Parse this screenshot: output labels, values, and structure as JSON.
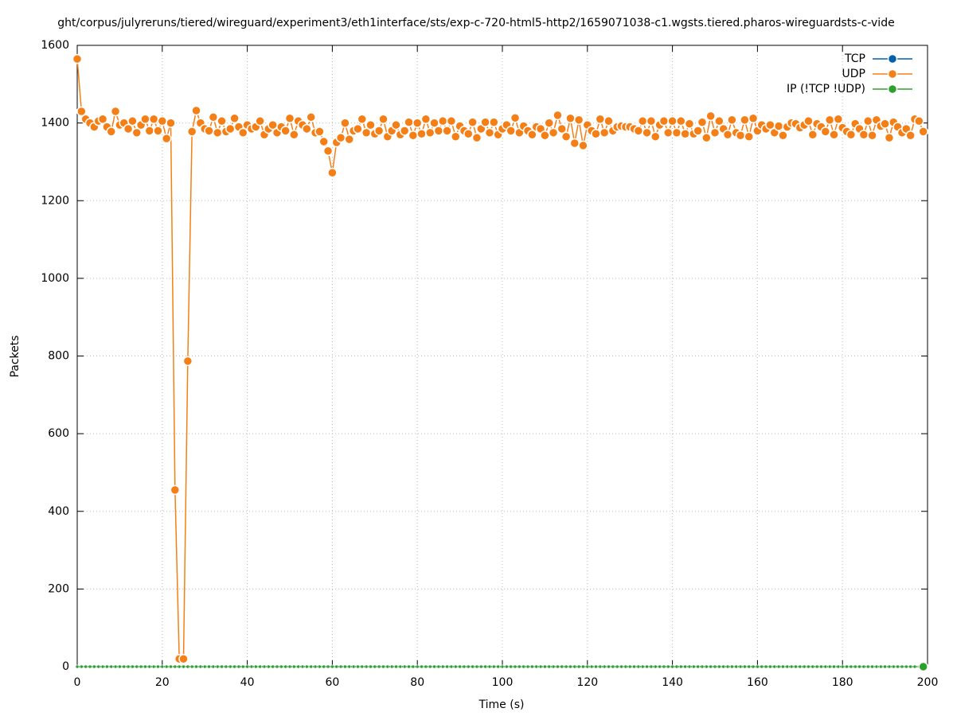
{
  "chart_data": {
    "type": "line",
    "title": "ght/corpus/julyreruns/tiered/wireguard/experiment3/eth1interface/sts/exp-c-720-html5-http2/1659071038-c1.wgsts.tiered.pharos-wireguardsts-c-vide",
    "xlabel": "Time (s)",
    "ylabel": "Packets",
    "xlim": [
      0,
      200
    ],
    "ylim": [
      0,
      1600
    ],
    "xticks": [
      0,
      20,
      40,
      60,
      80,
      100,
      120,
      140,
      160,
      180,
      200
    ],
    "yticks": [
      0,
      200,
      400,
      600,
      800,
      1000,
      1200,
      1400,
      1600
    ],
    "grid": true,
    "legend": "top-right",
    "x": [
      0,
      1,
      2,
      3,
      4,
      5,
      6,
      7,
      8,
      9,
      10,
      11,
      12,
      13,
      14,
      15,
      16,
      17,
      18,
      19,
      20,
      21,
      22,
      23,
      24,
      25,
      26,
      27,
      28,
      29,
      30,
      31,
      32,
      33,
      34,
      35,
      36,
      37,
      38,
      39,
      40,
      41,
      42,
      43,
      44,
      45,
      46,
      47,
      48,
      49,
      50,
      51,
      52,
      53,
      54,
      55,
      56,
      57,
      58,
      59,
      60,
      61,
      62,
      63,
      64,
      65,
      66,
      67,
      68,
      69,
      70,
      71,
      72,
      73,
      74,
      75,
      76,
      77,
      78,
      79,
      80,
      81,
      82,
      83,
      84,
      85,
      86,
      87,
      88,
      89,
      90,
      91,
      92,
      93,
      94,
      95,
      96,
      97,
      98,
      99,
      100,
      101,
      102,
      103,
      104,
      105,
      106,
      107,
      108,
      109,
      110,
      111,
      112,
      113,
      114,
      115,
      116,
      117,
      118,
      119,
      120,
      121,
      122,
      123,
      124,
      125,
      126,
      127,
      128,
      129,
      130,
      131,
      132,
      133,
      134,
      135,
      136,
      137,
      138,
      139,
      140,
      141,
      142,
      143,
      144,
      145,
      146,
      147,
      148,
      149,
      150,
      151,
      152,
      153,
      154,
      155,
      156,
      157,
      158,
      159,
      160,
      161,
      162,
      163,
      164,
      165,
      166,
      167,
      168,
      169,
      170,
      171,
      172,
      173,
      174,
      175,
      176,
      177,
      178,
      179,
      180,
      181,
      182,
      183,
      184,
      185,
      186,
      187,
      188,
      189,
      190,
      191,
      192,
      193,
      194,
      195,
      196,
      197,
      198,
      199
    ],
    "series": [
      {
        "name": "TCP",
        "color": "#0060ad",
        "values": [
          0,
          0,
          0,
          0,
          0,
          0,
          0,
          0,
          0,
          0,
          0,
          0,
          0,
          0,
          0,
          0,
          0,
          0,
          0,
          0,
          0,
          0,
          0,
          0,
          0,
          0,
          0,
          0,
          0,
          0,
          0,
          0,
          0,
          0,
          0,
          0,
          0,
          0,
          0,
          0,
          0,
          0,
          0,
          0,
          0,
          0,
          0,
          0,
          0,
          0,
          0,
          0,
          0,
          0,
          0,
          0,
          0,
          0,
          0,
          0,
          0,
          0,
          0,
          0,
          0,
          0,
          0,
          0,
          0,
          0,
          0,
          0,
          0,
          0,
          0,
          0,
          0,
          0,
          0,
          0,
          0,
          0,
          0,
          0,
          0,
          0,
          0,
          0,
          0,
          0,
          0,
          0,
          0,
          0,
          0,
          0,
          0,
          0,
          0,
          0,
          0,
          0,
          0,
          0,
          0,
          0,
          0,
          0,
          0,
          0,
          0,
          0,
          0,
          0,
          0,
          0,
          0,
          0,
          0,
          0,
          0,
          0,
          0,
          0,
          0,
          0,
          0,
          0,
          0,
          0,
          0,
          0,
          0,
          0,
          0,
          0,
          0,
          0,
          0,
          0,
          0,
          0,
          0,
          0,
          0,
          0,
          0,
          0,
          0,
          0,
          0,
          0,
          0,
          0,
          0,
          0,
          0,
          0,
          0,
          0,
          0,
          0,
          0,
          0,
          0,
          0,
          0,
          0,
          0,
          0,
          0,
          0,
          0,
          0,
          0,
          0,
          0,
          0,
          0,
          0,
          0,
          0,
          0,
          0,
          0,
          0,
          0,
          0,
          0,
          0,
          0,
          0,
          0,
          0,
          0,
          0,
          0,
          0,
          0,
          0
        ]
      },
      {
        "name": "UDP",
        "color": "#f57f17",
        "values": [
          1565,
          1430,
          1410,
          1400,
          1390,
          1405,
          1410,
          1390,
          1378,
          1430,
          1395,
          1400,
          1385,
          1405,
          1375,
          1395,
          1410,
          1380,
          1410,
          1380,
          1405,
          1360,
          1400,
          455,
          20,
          20,
          787,
          1378,
          1432,
          1400,
          1385,
          1380,
          1415,
          1375,
          1405,
          1378,
          1385,
          1412,
          1390,
          1375,
          1395,
          1385,
          1390,
          1405,
          1370,
          1385,
          1395,
          1375,
          1390,
          1380,
          1412,
          1370,
          1405,
          1395,
          1385,
          1415,
          1375,
          1378,
          1352,
          1328,
          1272,
          1350,
          1362,
          1400,
          1358,
          1380,
          1385,
          1410,
          1375,
          1395,
          1372,
          1380,
          1410,
          1365,
          1380,
          1395,
          1370,
          1380,
          1402,
          1368,
          1400,
          1372,
          1410,
          1375,
          1400,
          1380,
          1405,
          1380,
          1405,
          1365,
          1392,
          1380,
          1372,
          1402,
          1362,
          1385,
          1402,
          1375,
          1402,
          1370,
          1385,
          1395,
          1380,
          1413,
          1375,
          1392,
          1380,
          1370,
          1390,
          1385,
          1368,
          1400,
          1375,
          1420,
          1385,
          1365,
          1412,
          1348,
          1408,
          1342,
          1395,
          1380,
          1372,
          1410,
          1375,
          1405,
          1380,
          1390,
          1392,
          1390,
          1390,
          1385,
          1380,
          1405,
          1375,
          1405,
          1365,
          1395,
          1405,
          1375,
          1405,
          1375,
          1405,
          1372,
          1398,
          1372,
          1380,
          1402,
          1362,
          1418,
          1375,
          1405,
          1385,
          1370,
          1408,
          1375,
          1368,
          1408,
          1365,
          1412,
          1380,
          1395,
          1385,
          1395,
          1375,
          1392,
          1368,
          1390,
          1400,
          1398,
          1388,
          1395,
          1405,
          1370,
          1398,
          1390,
          1378,
          1408,
          1370,
          1410,
          1388,
          1378,
          1370,
          1398,
          1385,
          1370,
          1405,
          1368,
          1408,
          1392,
          1398,
          1362,
          1402,
          1390,
          1375,
          1385,
          1368,
          1410,
          1405,
          1378
        ]
      },
      {
        "name": "IP (!TCP  !UDP)",
        "color": "#2ca02c",
        "values": [
          0,
          0,
          0,
          0,
          0,
          0,
          0,
          0,
          0,
          0,
          0,
          0,
          0,
          0,
          0,
          0,
          0,
          0,
          0,
          0,
          0,
          0,
          0,
          0,
          0,
          0,
          0,
          0,
          0,
          0,
          0,
          0,
          0,
          0,
          0,
          0,
          0,
          0,
          0,
          0,
          0,
          0,
          0,
          0,
          0,
          0,
          0,
          0,
          0,
          0,
          0,
          0,
          0,
          0,
          0,
          0,
          0,
          0,
          0,
          0,
          0,
          0,
          0,
          0,
          0,
          0,
          0,
          0,
          0,
          0,
          0,
          0,
          0,
          0,
          0,
          0,
          0,
          0,
          0,
          0,
          0,
          0,
          0,
          0,
          0,
          0,
          0,
          0,
          0,
          0,
          0,
          0,
          0,
          0,
          0,
          0,
          0,
          0,
          0,
          0,
          0,
          0,
          0,
          0,
          0,
          0,
          0,
          0,
          0,
          0,
          0,
          0,
          0,
          0,
          0,
          0,
          0,
          0,
          0,
          0,
          0,
          0,
          0,
          0,
          0,
          0,
          0,
          0,
          0,
          0,
          0,
          0,
          0,
          0,
          0,
          0,
          0,
          0,
          0,
          0,
          0,
          0,
          0,
          0,
          0,
          0,
          0,
          0,
          0,
          0,
          0,
          0,
          0,
          0,
          0,
          0,
          0,
          0,
          0,
          0,
          0,
          0,
          0,
          0,
          0,
          0,
          0,
          0,
          0,
          0,
          0,
          0,
          0,
          0,
          0,
          0,
          0,
          0,
          0,
          0,
          0,
          0,
          0,
          0,
          0,
          0,
          0,
          0,
          0,
          0,
          0,
          0,
          0,
          0,
          0,
          0,
          0,
          0,
          0,
          0
        ]
      }
    ]
  }
}
